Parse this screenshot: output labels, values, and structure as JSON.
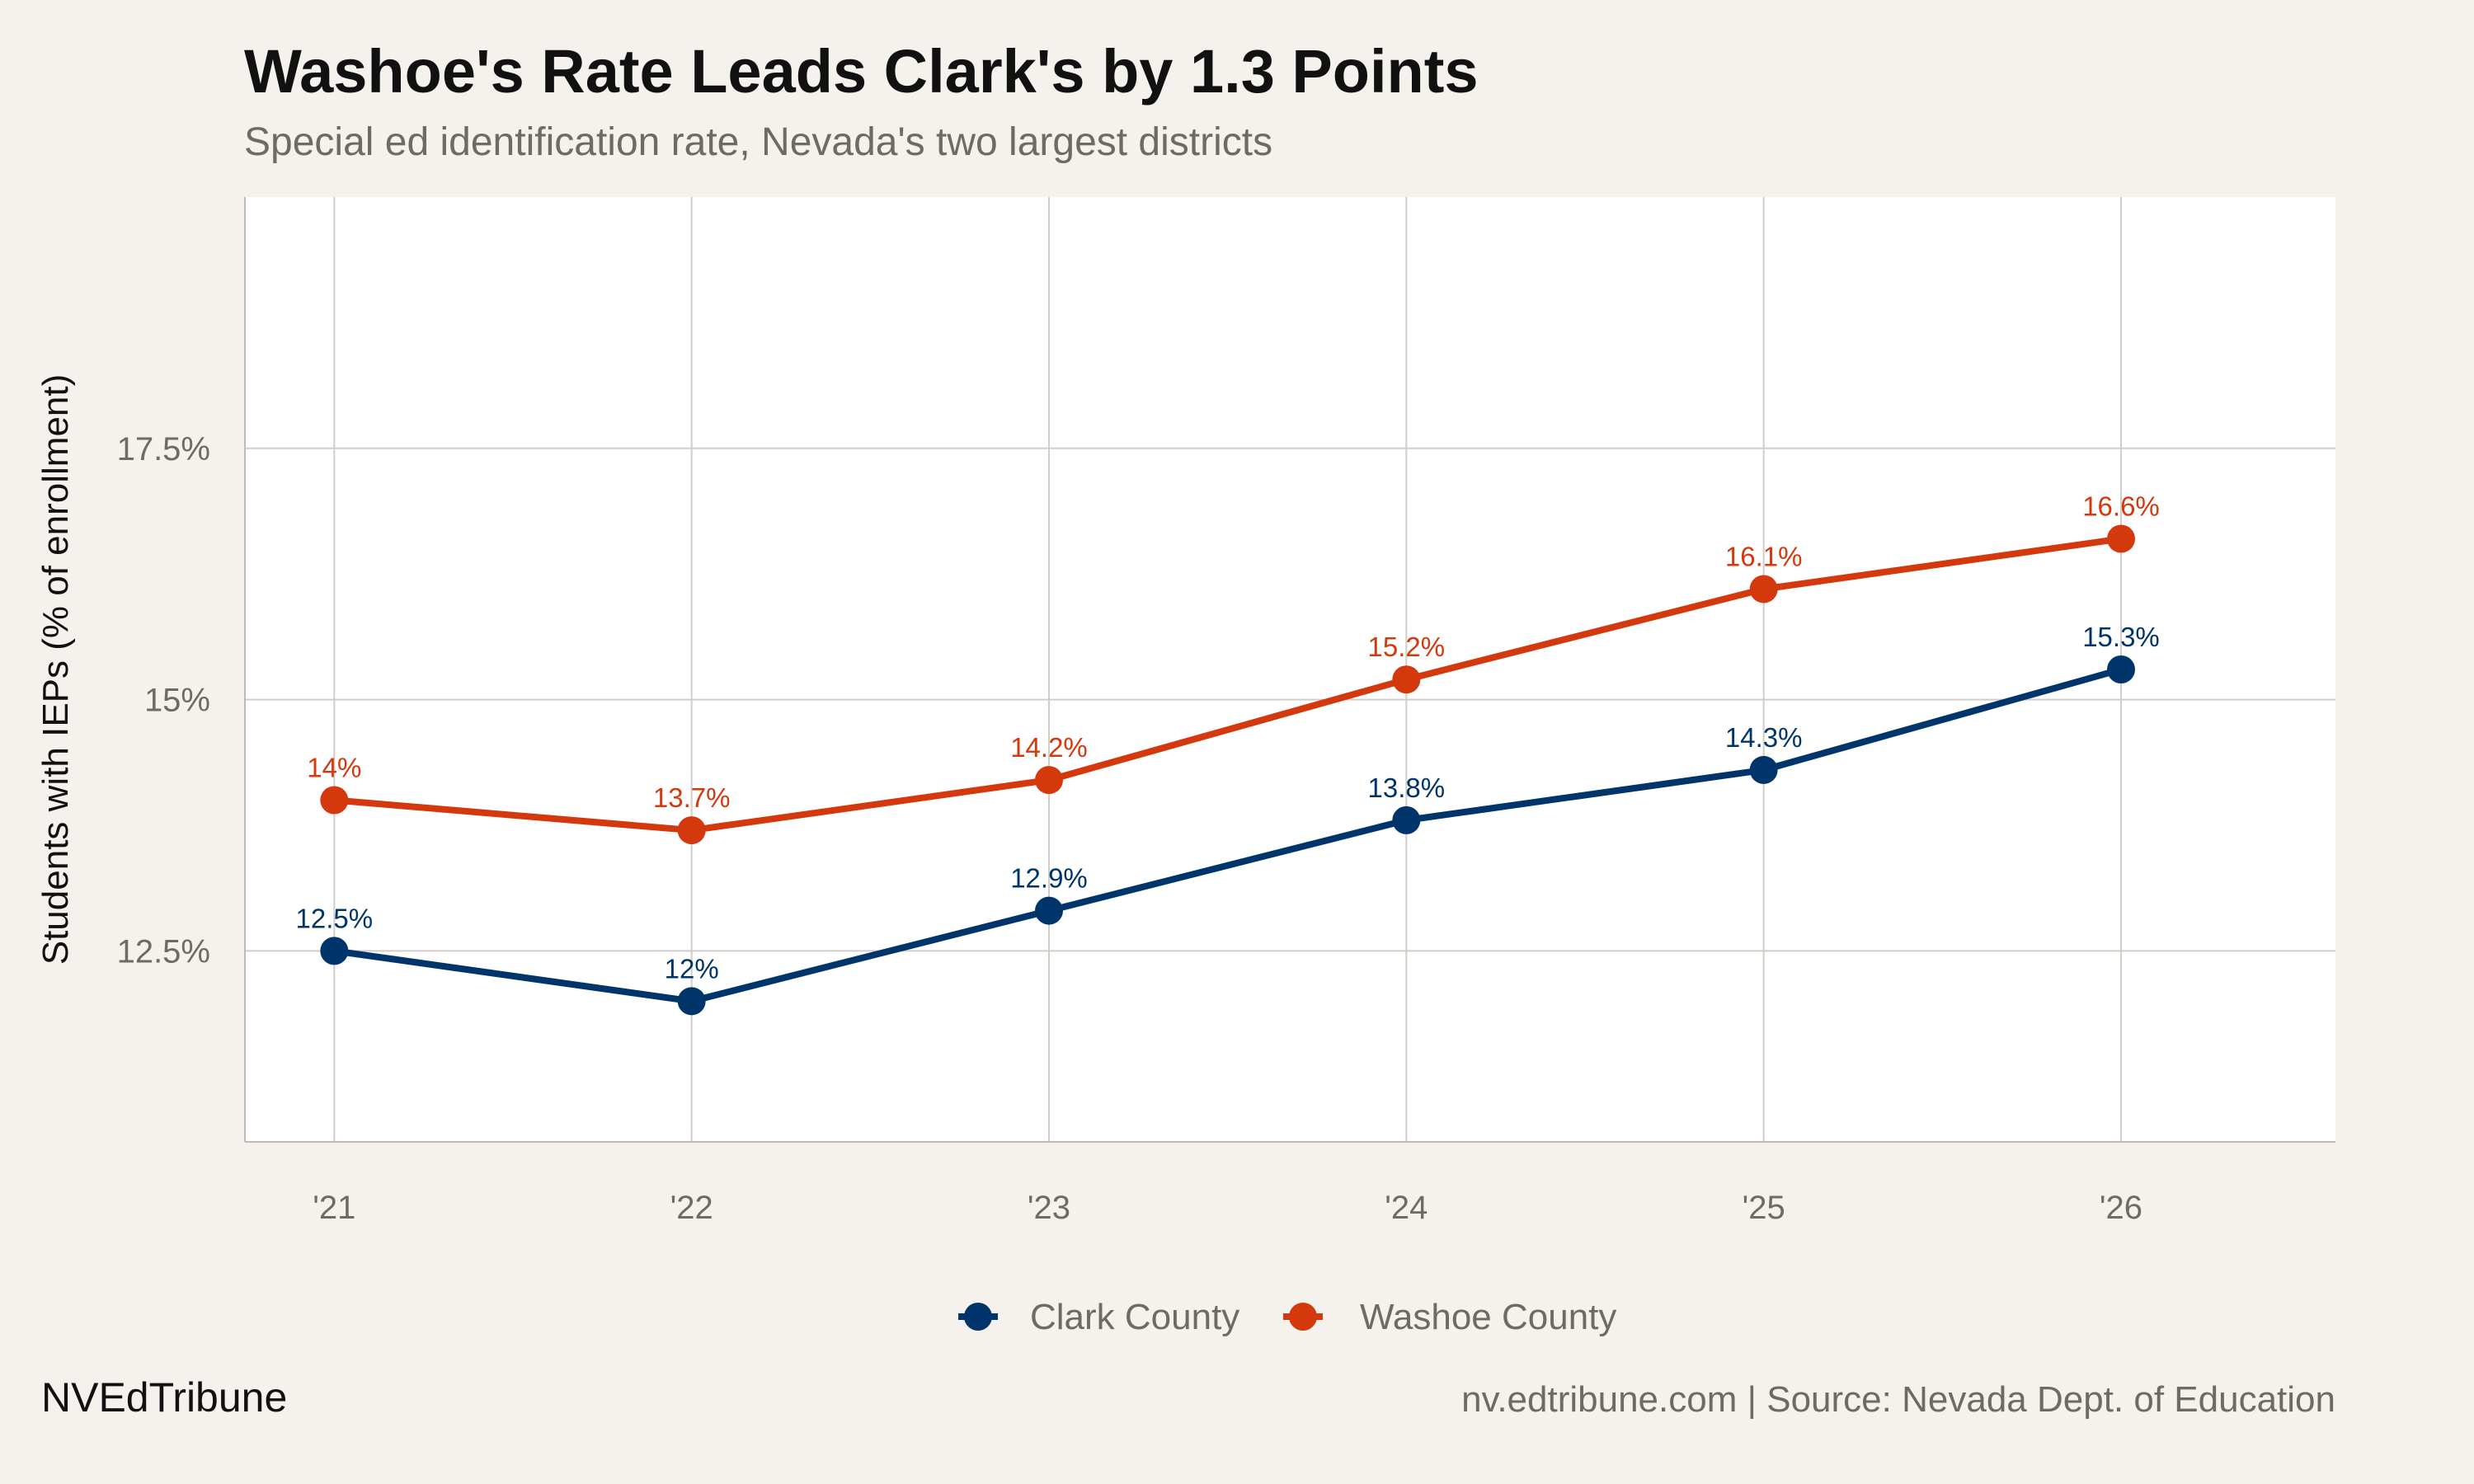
{
  "chart_data": {
    "type": "line",
    "title": "Washoe's Rate Leads Clark's by 1.3 Points",
    "subtitle": "Special ed identification rate, Nevada's two largest districts",
    "xlabel": "",
    "ylabel": "Students with IEPs (% of enrollment)",
    "categories": [
      "'21",
      "'22",
      "'23",
      "'24",
      "'25",
      "'26"
    ],
    "x": [
      21,
      22,
      23,
      24,
      25,
      26
    ],
    "xlim": [
      20.75,
      26.6
    ],
    "ylim": [
      10.6,
      20
    ],
    "yticks": [
      12.5,
      15,
      17.5
    ],
    "ytick_labels": [
      "12.5%",
      "15%",
      "17.5%"
    ],
    "grid": true,
    "legend_position": "bottom",
    "series": [
      {
        "name": "Clark County",
        "color": "#00356B",
        "values": [
          12.5,
          12.0,
          12.9,
          13.8,
          14.3,
          15.3
        ],
        "labels": [
          "12.5%",
          "12%",
          "12.9%",
          "13.8%",
          "14.3%",
          "15.3%"
        ]
      },
      {
        "name": "Washoe County",
        "color": "#D4380D",
        "values": [
          14.0,
          13.7,
          14.2,
          15.2,
          16.1,
          16.6
        ],
        "labels": [
          "14%",
          "13.7%",
          "14.2%",
          "15.2%",
          "16.1%",
          "16.6%"
        ]
      }
    ]
  },
  "footer": {
    "brand": "NVEdTribune",
    "source": "nv.edtribune.com | Source: Nevada Dept. of Education"
  }
}
